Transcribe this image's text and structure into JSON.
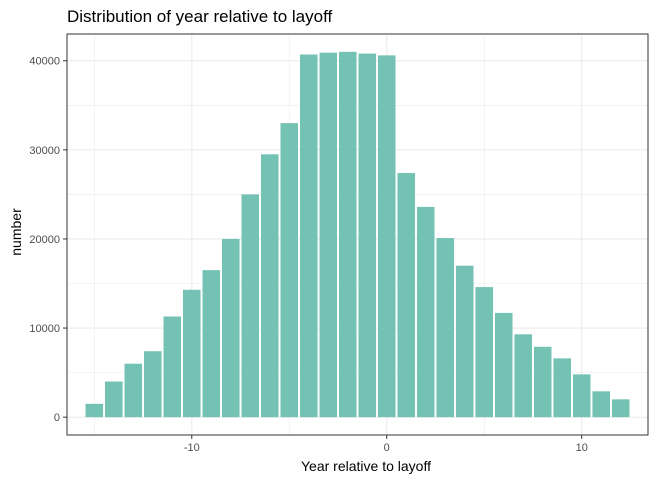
{
  "chart_data": {
    "type": "bar",
    "title": "Distribution of year relative to layoff",
    "xlabel": "Year relative to layoff",
    "ylabel": "number",
    "x": [
      -15,
      -14,
      -13,
      -12,
      -11,
      -10,
      -9,
      -8,
      -7,
      -6,
      -5,
      -4,
      -3,
      -2,
      -1,
      0,
      1,
      2,
      3,
      4,
      5,
      6,
      7,
      8,
      9,
      10,
      11,
      12
    ],
    "values": [
      1500,
      4000,
      6000,
      7400,
      11300,
      14300,
      16500,
      20000,
      25000,
      29500,
      33000,
      40700,
      40900,
      41000,
      40800,
      40600,
      27400,
      23600,
      20100,
      17000,
      14600,
      11700,
      9300,
      7900,
      6600,
      4800,
      2900,
      2000
    ],
    "xlim": [
      -16.4,
      13.4
    ],
    "ylim": [
      -2000,
      43000
    ],
    "xticks": [
      -10,
      0,
      10
    ],
    "xtick_labels": [
      "-10",
      "0",
      "10"
    ],
    "yticks": [
      0,
      10000,
      20000,
      30000,
      40000
    ],
    "ytick_labels": [
      "0",
      "10000",
      "20000",
      "30000",
      "40000"
    ],
    "grid": true,
    "bar_color": "#73C2B4",
    "panel_border_color": "#333333",
    "grid_color": "#ebebeb"
  }
}
